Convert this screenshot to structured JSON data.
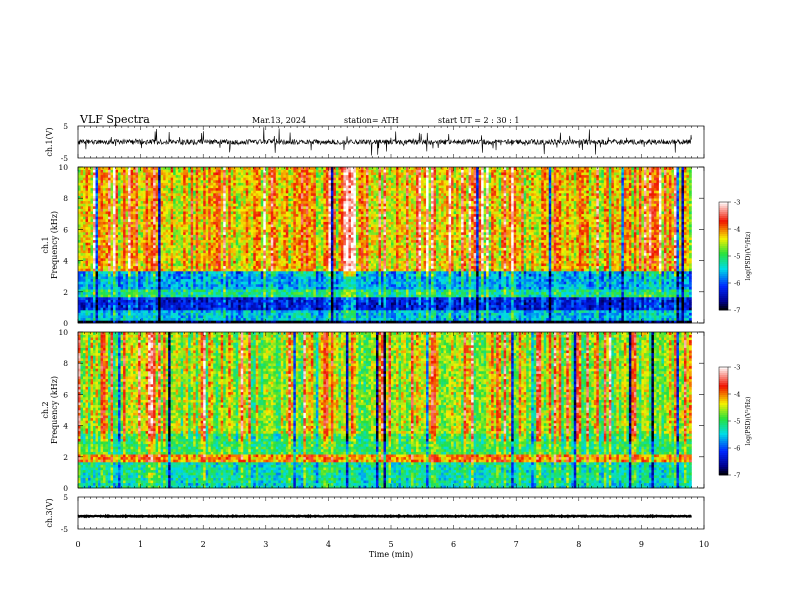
{
  "header": {
    "title": "VLF  Spectra",
    "date": "Mar.13, 2024",
    "station": "station= ATH",
    "start": "start  UT  =    2  : 30 : 1"
  },
  "chart_data": [
    {
      "type": "line",
      "panel": "ch1-waveform",
      "ylabel": "ch.1(V)",
      "ylim": [
        -5,
        5
      ],
      "yticks": [
        "5",
        "-5"
      ],
      "xlim": [
        0,
        10
      ],
      "baseline": 0,
      "x_end": 9.8
    },
    {
      "type": "heatmap",
      "panel": "ch1-spectrogram",
      "ylabel": "ch.1",
      "ylabel2": "Frequency  (kHz)",
      "ylim": [
        0,
        10
      ],
      "yticks": [
        "0",
        "2",
        "4",
        "6",
        "8",
        "10"
      ],
      "xlim": [
        0,
        10
      ],
      "x_end": 9.8,
      "colorbar": {
        "label": "log(PSD)(V²/Hz)",
        "range": [
          -7,
          -3
        ],
        "ticks": [
          "-3",
          "-4",
          "-5",
          "-6",
          "-7"
        ]
      },
      "bands_khz": [
        {
          "from": 0,
          "to": 0.25,
          "level": -7
        },
        {
          "from": 0.25,
          "to": 0.9,
          "level": -5.6
        },
        {
          "from": 0.9,
          "to": 1.6,
          "level": -6.3
        },
        {
          "from": 1.6,
          "to": 2.2,
          "level": -5.2
        },
        {
          "from": 2.2,
          "to": 3.4,
          "level": -5.7
        },
        {
          "from": 3.4,
          "to": 10,
          "level": -4.3
        }
      ]
    },
    {
      "type": "heatmap",
      "panel": "ch2-spectrogram",
      "ylabel": "ch.2",
      "ylabel2": "Frequency  (kHz)",
      "ylim": [
        0,
        10
      ],
      "yticks": [
        "0",
        "2",
        "4",
        "6",
        "8",
        "10"
      ],
      "xlim": [
        0,
        10
      ],
      "x_end": 9.8,
      "colorbar": {
        "label": "log(PSD)(V²/Hz)",
        "range": [
          -7,
          -3
        ],
        "ticks": [
          "-3",
          "-4",
          "-5",
          "-6",
          "-7"
        ]
      },
      "bands_khz": [
        {
          "from": 0,
          "to": 0.3,
          "level": -5.4
        },
        {
          "from": 0.3,
          "to": 1.7,
          "level": -5.3
        },
        {
          "from": 1.7,
          "to": 2.1,
          "level": -4.1
        },
        {
          "from": 2.1,
          "to": 3.5,
          "level": -5.0
        },
        {
          "from": 3.5,
          "to": 10,
          "level": -4.6
        }
      ]
    },
    {
      "type": "line",
      "panel": "ch3-waveform",
      "ylabel": "ch.3(V)",
      "ylim": [
        -5,
        5
      ],
      "yticks": [
        "5",
        "-5"
      ],
      "xlim": [
        0,
        10
      ],
      "baseline": -1,
      "x_end": 9.8,
      "xlabel": "Time  (min)",
      "xticks": [
        "0",
        "1",
        "2",
        "3",
        "4",
        "5",
        "6",
        "7",
        "8",
        "9",
        "10"
      ]
    }
  ]
}
